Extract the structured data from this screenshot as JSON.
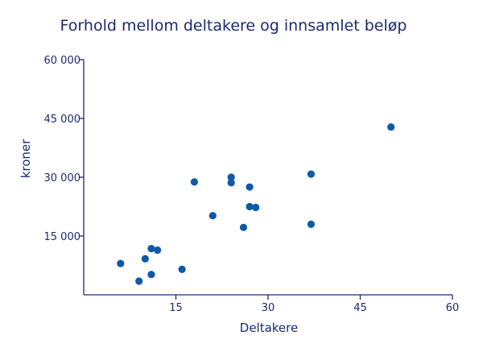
{
  "chart_data": {
    "type": "scatter",
    "title": "Forhold mellom deltakere og innsamlet beløp",
    "xlabel": "Deltakere",
    "ylabel": "kroner",
    "xlim": [
      0,
      60
    ],
    "ylim": [
      0,
      60000
    ],
    "xticks": [
      15,
      30,
      45,
      60
    ],
    "xtick_labels": [
      "15",
      "30",
      "45",
      "60"
    ],
    "yticks": [
      15000,
      30000,
      45000,
      60000
    ],
    "ytick_labels": [
      "15 000",
      "30 000",
      "45 000",
      "60 000"
    ],
    "grid": false,
    "marker_color": "#0e5aa7",
    "points": [
      {
        "x": 6,
        "y": 8000
      },
      {
        "x": 9,
        "y": 3500
      },
      {
        "x": 10,
        "y": 9200
      },
      {
        "x": 11,
        "y": 11800
      },
      {
        "x": 11,
        "y": 5200
      },
      {
        "x": 12,
        "y": 11400
      },
      {
        "x": 16,
        "y": 6500
      },
      {
        "x": 18,
        "y": 28800
      },
      {
        "x": 21,
        "y": 20200
      },
      {
        "x": 24,
        "y": 30000
      },
      {
        "x": 24,
        "y": 28600
      },
      {
        "x": 26,
        "y": 17200
      },
      {
        "x": 27,
        "y": 27500
      },
      {
        "x": 27,
        "y": 22500
      },
      {
        "x": 28,
        "y": 22300
      },
      {
        "x": 37,
        "y": 30800
      },
      {
        "x": 37,
        "y": 18000
      },
      {
        "x": 50,
        "y": 42800
      }
    ]
  }
}
